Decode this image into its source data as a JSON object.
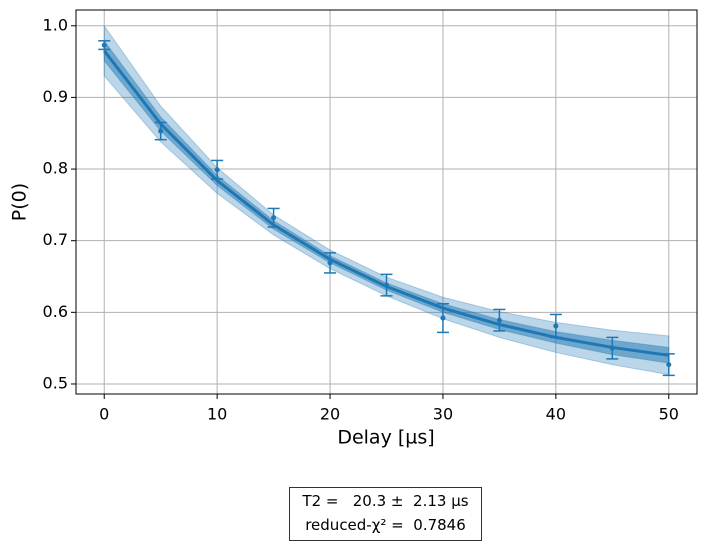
{
  "chart_data": {
    "type": "scatter",
    "x_label": "Delay [µs]",
    "y_label": "P(0)",
    "xlim": [
      -2.5,
      52.5
    ],
    "ylim": [
      0.486,
      1.022
    ],
    "xticks": [
      0,
      10,
      20,
      30,
      40,
      50
    ],
    "yticks": [
      0.5,
      0.6,
      0.7,
      0.8,
      0.9,
      {
        "value": 1,
        "label": "1.0"
      }
    ],
    "grid": true,
    "color": "#1f77b4",
    "x": [
      0,
      5,
      10,
      15,
      20,
      25,
      30,
      35,
      40,
      45,
      50
    ],
    "values": [
      0.973,
      0.853,
      0.799,
      0.732,
      0.669,
      0.638,
      0.592,
      0.589,
      0.581,
      0.55,
      0.527
    ],
    "errors": [
      0.006,
      0.012,
      0.013,
      0.013,
      0.014,
      0.015,
      0.02,
      0.015,
      0.016,
      0.015,
      0.015
    ],
    "fit": {
      "x": [
        0,
        5,
        10,
        15,
        20,
        25,
        30,
        35,
        40,
        45,
        50
      ],
      "values": [
        0.965,
        0.863,
        0.784,
        0.722,
        0.674,
        0.636,
        0.606,
        0.583,
        0.565,
        0.551,
        0.54
      ],
      "outer_upper": [
        1.0,
        0.888,
        0.802,
        0.736,
        0.687,
        0.649,
        0.621,
        0.601,
        0.586,
        0.575,
        0.567
      ],
      "outer_lower": [
        0.93,
        0.838,
        0.766,
        0.708,
        0.661,
        0.623,
        0.591,
        0.565,
        0.544,
        0.527,
        0.513
      ],
      "inner_upper": [
        0.979,
        0.873,
        0.791,
        0.728,
        0.679,
        0.641,
        0.612,
        0.59,
        0.573,
        0.561,
        0.551
      ],
      "inner_lower": [
        0.951,
        0.853,
        0.777,
        0.716,
        0.669,
        0.631,
        0.6,
        0.576,
        0.557,
        0.541,
        0.529
      ]
    },
    "annotation": [
      "T2 =   20.3 ±  2.13 µs",
      "reduced-χ² =  0.7846"
    ]
  }
}
